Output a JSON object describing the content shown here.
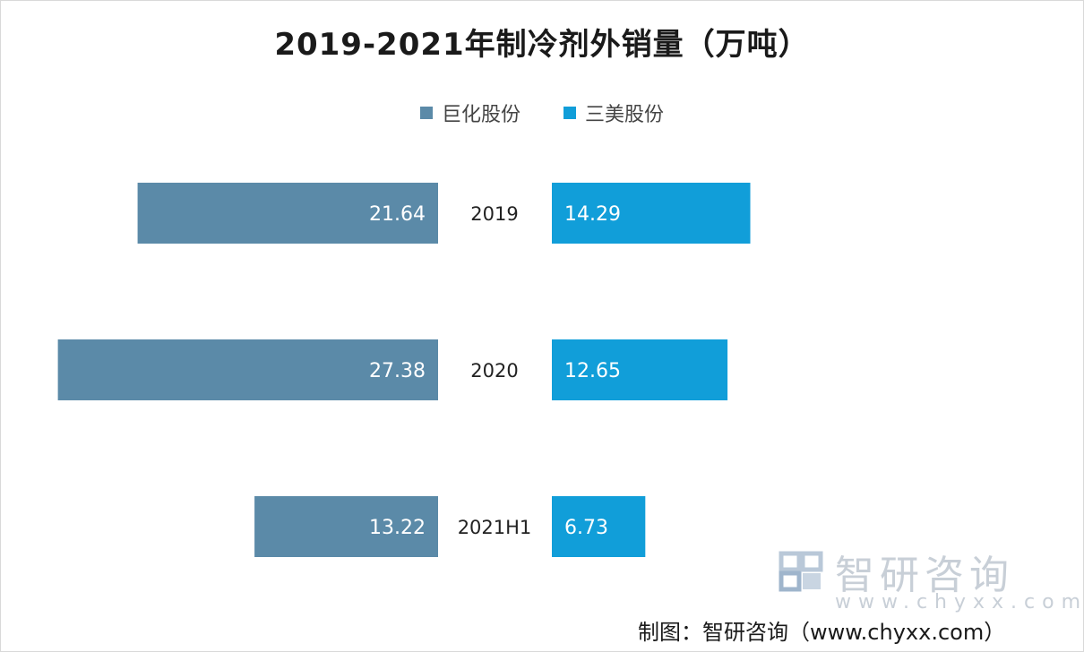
{
  "chart_data": {
    "type": "bar",
    "orientation": "horizontal-butterfly",
    "title": "2019-2021年制冷剂外销量（万吨）",
    "categories": [
      "2019",
      "2020",
      "2021H1"
    ],
    "series": [
      {
        "name": "巨化股份",
        "values": [
          21.64,
          27.38,
          13.22
        ],
        "color": "#5b8aa8"
      },
      {
        "name": "三美股份",
        "values": [
          14.29,
          12.65,
          6.73
        ],
        "color": "#119ed9"
      }
    ],
    "xlabel": "",
    "ylabel": "",
    "legend": "top-center",
    "grid": false
  },
  "watermark": {
    "name": "智研咨询",
    "url": "www.chyxx.com"
  },
  "source_text": "制图：智研咨询（www.chyxx.com）"
}
